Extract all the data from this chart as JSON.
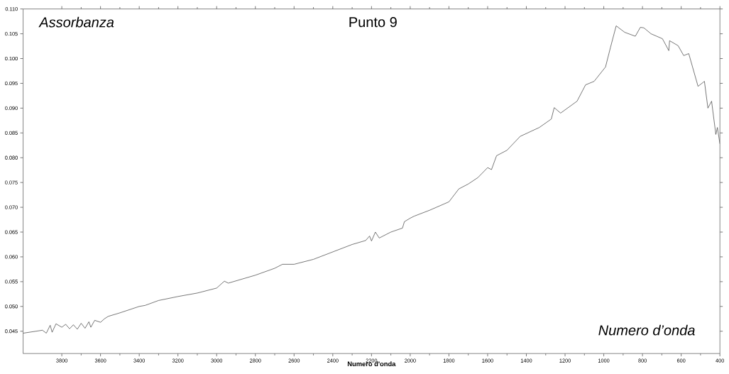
{
  "chart_data": {
    "type": "line",
    "title": "Punto 9",
    "ylabel": "Assorbanza",
    "xlabel": "Numero d'onda",
    "annotations": [
      "Numero d’onda"
    ],
    "x": [
      4000,
      3950,
      3900,
      3880,
      3860,
      3850,
      3830,
      3800,
      3780,
      3760,
      3740,
      3720,
      3700,
      3680,
      3660,
      3650,
      3630,
      3600,
      3580,
      3560,
      3500,
      3400,
      3370,
      3300,
      3200,
      3100,
      3000,
      2960,
      2940,
      2800,
      2700,
      2660,
      2600,
      2500,
      2400,
      2300,
      2230,
      2210,
      2200,
      2180,
      2160,
      2100,
      2040,
      2030,
      2000,
      1980,
      1900,
      1800,
      1749,
      1700,
      1650,
      1600,
      1580,
      1554,
      1500,
      1432,
      1333,
      1271,
      1256,
      1223,
      1138,
      1094,
      1050,
      991,
      965,
      936,
      892,
      837,
      811,
      793,
      756,
      697,
      664,
      660,
      616,
      587,
      561,
      513,
      480,
      462,
      443,
      421,
      413,
      400
    ],
    "series": [
      {
        "color": "#333333",
        "values": [
          0.0446,
          0.0449,
          0.0452,
          0.0446,
          0.0462,
          0.0448,
          0.0465,
          0.0458,
          0.0464,
          0.0455,
          0.0463,
          0.0454,
          0.0466,
          0.0456,
          0.0469,
          0.0458,
          0.0472,
          0.0468,
          0.0475,
          0.048,
          0.0487,
          0.05,
          0.0502,
          0.0512,
          0.052,
          0.0527,
          0.0537,
          0.0551,
          0.0547,
          0.0563,
          0.0577,
          0.0585,
          0.0585,
          0.0595,
          0.061,
          0.0625,
          0.0633,
          0.0642,
          0.0632,
          0.065,
          0.0638,
          0.065,
          0.0658,
          0.0671,
          0.0678,
          0.0682,
          0.0694,
          0.0711,
          0.0737,
          0.0747,
          0.076,
          0.078,
          0.0776,
          0.0804,
          0.0815,
          0.0843,
          0.0861,
          0.0878,
          0.0901,
          0.089,
          0.0914,
          0.0947,
          0.0954,
          0.0983,
          0.1023,
          0.1066,
          0.1053,
          0.1045,
          0.1063,
          0.1062,
          0.105,
          0.104,
          0.1016,
          0.1036,
          0.1026,
          0.1006,
          0.101,
          0.0944,
          0.0954,
          0.09,
          0.0914,
          0.0847,
          0.0861,
          0.0828
        ]
      }
    ],
    "xlim": [
      4000,
      400
    ],
    "ylim": [
      0.0405,
      0.11
    ],
    "xticks": [
      3800,
      3600,
      3400,
      3200,
      3000,
      2800,
      2600,
      2400,
      2200,
      2000,
      1800,
      1600,
      1400,
      1200,
      1000,
      800,
      600,
      400
    ],
    "yticks": [
      {
        "value": 0.045,
        "label": "0.045"
      },
      {
        "value": 0.05,
        "label": "0.050"
      },
      {
        "value": 0.055,
        "label": "0.055"
      },
      {
        "value": 0.06,
        "label": "0.060"
      },
      {
        "value": 0.065,
        "label": "0.065"
      },
      {
        "value": 0.07,
        "label": "0.070"
      },
      {
        "value": 0.075,
        "label": "0.075"
      },
      {
        "value": 0.08,
        "label": "0.080"
      },
      {
        "value": 0.085,
        "label": "0.085"
      },
      {
        "value": 0.09,
        "label": "0.090"
      },
      {
        "value": 0.095,
        "label": "0.095"
      },
      {
        "value": 0.1,
        "label": "0.100"
      },
      {
        "value": 0.105,
        "label": "0.105"
      },
      {
        "value": 0.11,
        "label": "0.110"
      }
    ],
    "grid": false,
    "marker": "none",
    "line_style": "solid"
  }
}
